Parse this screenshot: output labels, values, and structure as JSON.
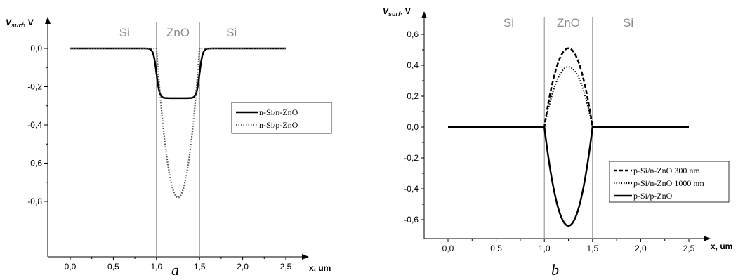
{
  "chart_data": [
    {
      "type": "line",
      "caption": "a",
      "ylabel_main": "V",
      "ylabel_sub": "surf",
      "ylabel_unit": ", V",
      "xlabel": "x, um",
      "xlim": [
        0.0,
        2.5
      ],
      "ylim": [
        -0.85,
        0.0
      ],
      "x_ticks": [
        0.0,
        0.5,
        1.0,
        1.5,
        2.0,
        2.5
      ],
      "x_tick_labels": [
        "0,0",
        "0,5",
        "1,0",
        "1,5",
        "2,0",
        "2,5"
      ],
      "y_ticks": [
        0.0,
        -0.2,
        -0.4,
        -0.6,
        -0.8
      ],
      "y_tick_labels": [
        "0,0",
        "-0,2",
        "-0,4",
        "-0,6",
        "-0,8"
      ],
      "regions": [
        {
          "label": "Si",
          "x": 0.63
        },
        {
          "label": "ZnO",
          "x": 1.25
        },
        {
          "label": "Si",
          "x": 1.87
        }
      ],
      "boundaries": [
        1.0,
        1.5
      ],
      "legend_position": "right",
      "series": [
        {
          "name": "n-Si/n-ZnO",
          "style": "solid",
          "profile": "plateau",
          "depth": -0.26
        },
        {
          "name": "n-Si/p-ZnO",
          "style": "dotted",
          "profile": "bowl",
          "depth": -0.78
        }
      ]
    },
    {
      "type": "line",
      "caption": "b",
      "ylabel_main": "V",
      "ylabel_sub": "surf",
      "ylabel_unit": ", V",
      "xlabel": "x, um",
      "xlim": [
        0.0,
        2.5
      ],
      "ylim": [
        -0.7,
        0.65
      ],
      "x_ticks": [
        0.0,
        0.5,
        1.0,
        1.5,
        2.0,
        2.5
      ],
      "x_tick_labels": [
        "0,0",
        "0,5",
        "1,0",
        "1,5",
        "2,0",
        "2,5"
      ],
      "y_ticks": [
        0.6,
        0.4,
        0.2,
        0.0,
        -0.2,
        -0.4,
        -0.6
      ],
      "y_tick_labels": [
        "0,6",
        "0,4",
        "0,2",
        "0,0",
        "-0,2",
        "-0,4",
        "-0,6"
      ],
      "regions": [
        {
          "label": "Si",
          "x": 0.63
        },
        {
          "label": "ZnO",
          "x": 1.25
        },
        {
          "label": "Si",
          "x": 1.87
        }
      ],
      "boundaries": [
        1.0,
        1.5
      ],
      "legend_position": "bottom-right",
      "series": [
        {
          "name": "p-Si/n-ZnO 300 nm",
          "style": "dashed",
          "profile": "bowl",
          "depth": 0.51
        },
        {
          "name": "p-Si/n-ZnO 1000 nm",
          "style": "dotted",
          "profile": "bowl",
          "depth": 0.39
        },
        {
          "name": "p-Si/p-ZnO",
          "style": "solid",
          "profile": "bowl",
          "depth": -0.64
        }
      ]
    }
  ]
}
